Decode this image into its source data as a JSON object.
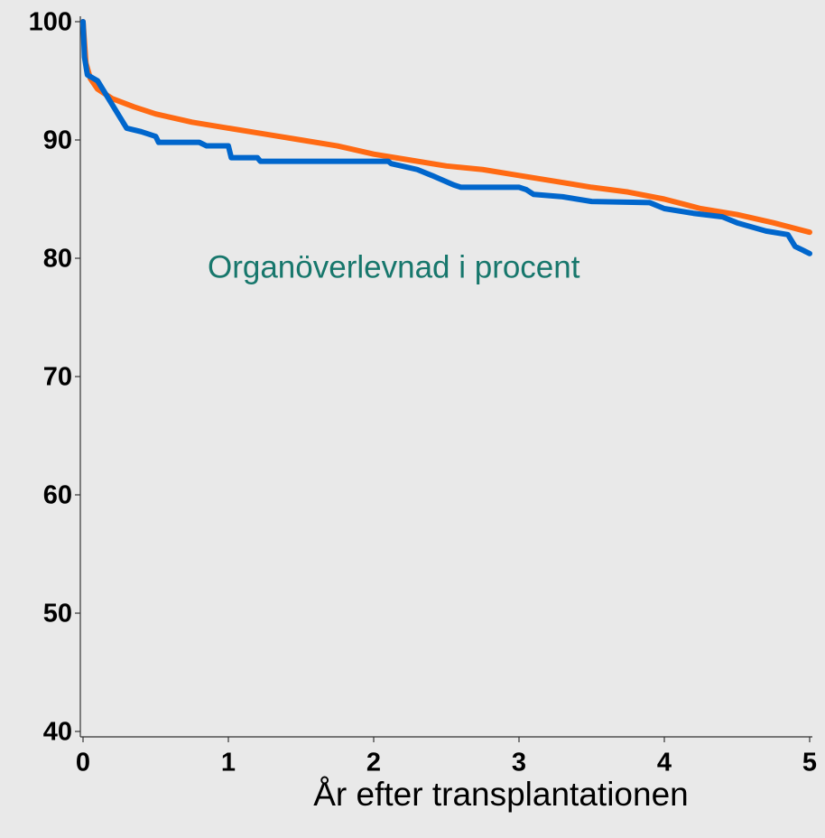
{
  "chart_data": {
    "type": "line",
    "annotation": "Organöverlevnad i procent",
    "x_label": "År efter transplantationen",
    "xlim": [
      0,
      5
    ],
    "xticks": [
      0,
      1,
      2,
      3,
      4,
      5
    ],
    "ylim": [
      40,
      100
    ],
    "yticks": [
      40,
      50,
      60,
      70,
      80,
      90,
      100
    ],
    "series": [
      {
        "color": "#ff6a13",
        "x": [
          0,
          0.02,
          0.05,
          0.1,
          0.2,
          0.35,
          0.5,
          0.75,
          1,
          1.25,
          1.5,
          1.75,
          2,
          2.25,
          2.5,
          2.75,
          3,
          3.25,
          3.5,
          3.75,
          4,
          4.25,
          4.5,
          4.75,
          5
        ],
        "values": [
          100,
          96.5,
          95.2,
          94.3,
          93.5,
          92.8,
          92.2,
          91.5,
          91,
          90.5,
          90,
          89.5,
          88.8,
          88.3,
          87.8,
          87.5,
          87,
          86.5,
          86,
          85.6,
          85,
          84.2,
          83.7,
          83,
          82.2
        ]
      },
      {
        "color": "#0066cc",
        "x": [
          0,
          0.01,
          0.03,
          0.1,
          0.15,
          0.2,
          0.25,
          0.3,
          0.4,
          0.5,
          0.52,
          0.8,
          0.85,
          1.0,
          1.02,
          1.2,
          1.22,
          2.1,
          2.12,
          2.3,
          2.4,
          2.55,
          2.6,
          3.0,
          3.05,
          3.1,
          3.3,
          3.5,
          3.9,
          4.0,
          4.2,
          4.4,
          4.5,
          4.7,
          4.85,
          4.9,
          5.0
        ],
        "values": [
          100,
          97,
          95.5,
          95,
          94,
          93,
          92,
          91,
          90.7,
          90.3,
          89.8,
          89.8,
          89.5,
          89.5,
          88.5,
          88.5,
          88.2,
          88.2,
          88,
          87.5,
          87,
          86.2,
          86,
          86,
          85.8,
          85.4,
          85.2,
          84.8,
          84.7,
          84.2,
          83.8,
          83.5,
          83,
          82.3,
          82,
          81,
          80.4
        ]
      }
    ]
  }
}
